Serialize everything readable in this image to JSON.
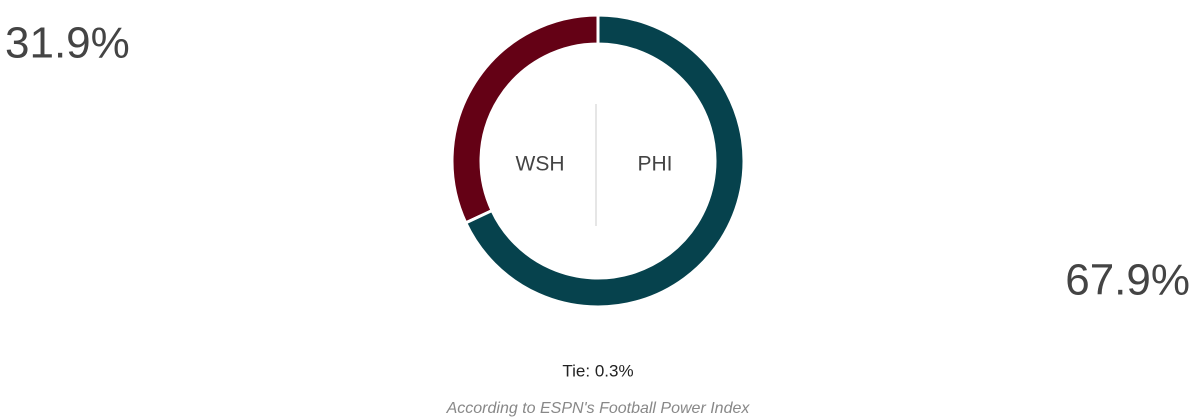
{
  "chart_data": {
    "type": "donut",
    "categories": [
      "WSH",
      "PHI"
    ],
    "values": [
      31.9,
      67.9
    ],
    "value_labels": [
      "31.9%",
      "67.9%"
    ],
    "colors": [
      "#640115",
      "#06424d"
    ],
    "tie_label": "Tie: 0.3%",
    "footnote": "According to ESPN's Football Power Index"
  }
}
